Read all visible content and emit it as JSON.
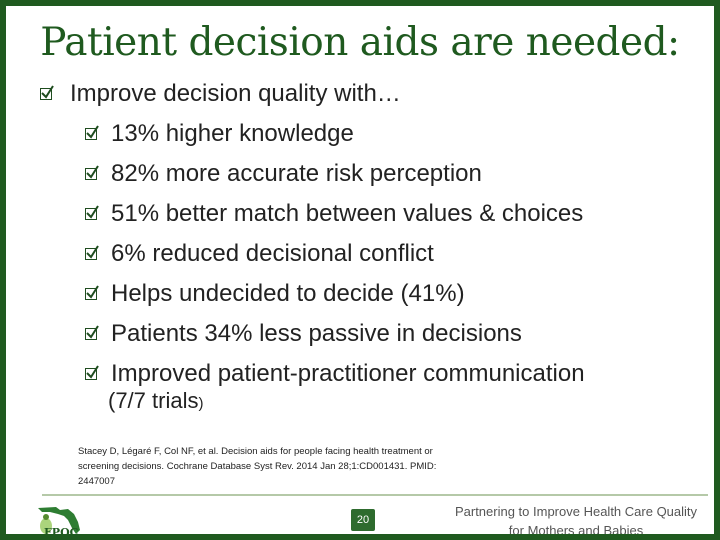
{
  "slide": {
    "title": "Patient decision aids are needed:",
    "bullets": [
      {
        "text": "Improve decision quality with…"
      },
      {
        "text": "13% higher knowledge"
      },
      {
        "text": "82% more accurate risk perception"
      },
      {
        "text": "51% better match between values & choices"
      },
      {
        "text": "6% reduced decisional conflict"
      },
      {
        "text": "Helps undecided to decide (41%)"
      },
      {
        "text": "Patients 34% less passive in decisions"
      },
      {
        "text": "Improved patient-practitioner communication"
      }
    ],
    "continuation": "(7/7 trials",
    "continuation_tail": ")",
    "citation": "Stacey D, Légaré F, Col NF, et al. Decision aids for people facing health treatment or screening decisions. Cochrane Database Syst Rev. 2014 Jan 28;1:CD001431. PMID: 2447007",
    "page_number": "20",
    "logo_text": "FPQC",
    "tagline_line1": "Partnering to Improve Health Care Quality",
    "tagline_line2": "for Mothers and Babies",
    "colors": {
      "accent": "#1f5a1f",
      "rule": "#b5c9a8",
      "badge": "#2e6b2e"
    }
  }
}
